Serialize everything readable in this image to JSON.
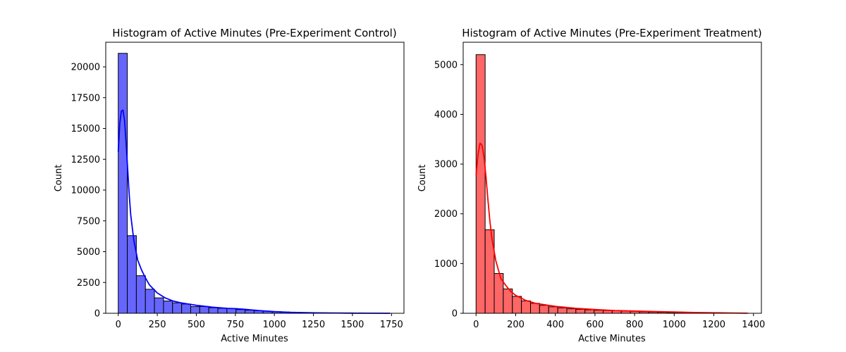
{
  "chart_data": [
    {
      "type": "bar",
      "title": "Histogram of Active Minutes (Pre-Experiment Control)",
      "xlabel": "Active Minutes",
      "ylabel": "Count",
      "xlim": [
        -80,
        1830
      ],
      "ylim": [
        0,
        22000
      ],
      "xticks": [
        0,
        250,
        500,
        750,
        1000,
        1250,
        1500,
        1750
      ],
      "yticks": [
        0,
        2500,
        5000,
        7500,
        10000,
        12500,
        15000,
        17500,
        20000
      ],
      "bin_start": 0,
      "bin_width": 58,
      "values": [
        21100,
        6300,
        3050,
        1950,
        1250,
        1000,
        850,
        750,
        550,
        550,
        450,
        400,
        400,
        300,
        250,
        200,
        170,
        130,
        100,
        80,
        60,
        50,
        40,
        30,
        25,
        20,
        15,
        10,
        8,
        5
      ],
      "kde": {
        "x": [
          0,
          10,
          20,
          30,
          40,
          50,
          60,
          70,
          80,
          100,
          125,
          150,
          175,
          200,
          250,
          300,
          350,
          400,
          500,
          600,
          700,
          750,
          800,
          900,
          1000,
          1100,
          1200,
          1300,
          1400,
          1500,
          1600,
          1740
        ],
        "y": [
          13100,
          15400,
          16400,
          16500,
          15700,
          13900,
          11800,
          9700,
          8000,
          5900,
          4300,
          3500,
          2850,
          2300,
          1650,
          1250,
          1000,
          850,
          650,
          500,
          400,
          380,
          330,
          220,
          140,
          80,
          50,
          30,
          20,
          10,
          5,
          2
        ]
      },
      "color": "#0000ff",
      "fill_color": "#6666ff"
    },
    {
      "type": "bar",
      "title": "Histogram of Active Minutes (Pre-Experiment Treatment)",
      "xlabel": "Active Minutes",
      "ylabel": "Count",
      "xlim": [
        -65,
        1440
      ],
      "ylim": [
        0,
        5450
      ],
      "xticks": [
        0,
        200,
        400,
        600,
        800,
        1000,
        1200,
        1400
      ],
      "yticks": [
        0,
        1000,
        2000,
        3000,
        4000,
        5000
      ],
      "bin_start": 0,
      "bin_width": 45.8,
      "values": [
        5200,
        1680,
        800,
        490,
        340,
        250,
        200,
        160,
        130,
        110,
        90,
        80,
        70,
        60,
        55,
        50,
        45,
        40,
        30,
        25,
        20,
        15,
        12,
        10,
        8,
        6,
        5,
        4,
        3,
        2
      ],
      "kde": {
        "x": [
          0,
          10,
          20,
          30,
          40,
          50,
          60,
          70,
          80,
          100,
          125,
          150,
          175,
          200,
          250,
          300,
          400,
          500,
          600,
          700,
          800,
          900,
          1000,
          1100,
          1200,
          1300,
          1370
        ],
        "y": [
          2780,
          3200,
          3420,
          3380,
          3150,
          2750,
          2280,
          1850,
          1500,
          1050,
          700,
          560,
          440,
          360,
          260,
          200,
          140,
          100,
          75,
          55,
          45,
          35,
          25,
          15,
          10,
          5,
          2
        ]
      },
      "color": "#ff0000",
      "fill_color": "#ff6666"
    }
  ]
}
